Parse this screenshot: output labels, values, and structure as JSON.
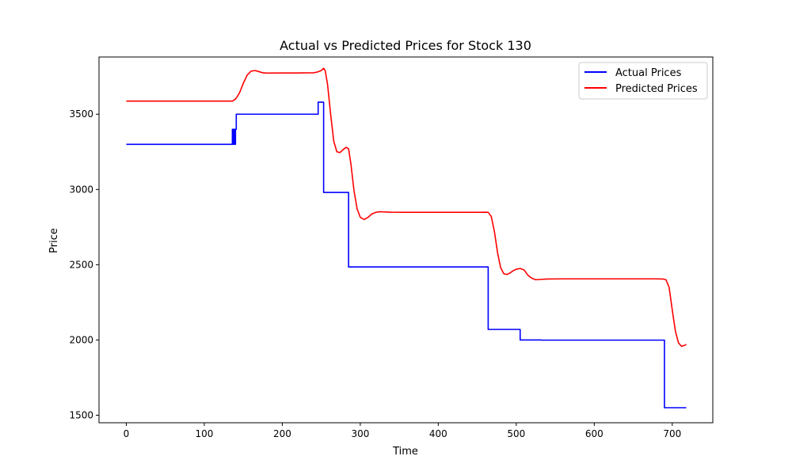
{
  "chart_data": {
    "type": "line",
    "title": "Actual vs Predicted Prices for Stock 130",
    "xlabel": "Time",
    "ylabel": "Price",
    "xlim": [
      -35,
      752
    ],
    "ylim": [
      1450,
      3880
    ],
    "xticks": [
      0,
      100,
      200,
      300,
      400,
      500,
      600,
      700
    ],
    "yticks": [
      1500,
      2000,
      2500,
      3000,
      3500
    ],
    "grid": false,
    "legend_position": "top-right",
    "series": [
      {
        "name": "Actual Prices",
        "color": "#0000ff",
        "x": [
          0,
          136,
          136,
          137,
          137,
          138,
          138,
          139,
          139,
          140,
          140,
          141,
          141,
          246,
          246,
          253,
          253,
          285,
          285,
          464,
          464,
          505,
          505,
          532,
          533,
          690,
          690,
          718
        ],
        "y": [
          3300,
          3300,
          3400,
          3400,
          3300,
          3300,
          3400,
          3400,
          3300,
          3300,
          3400,
          3400,
          3500,
          3500,
          3580,
          3580,
          2980,
          2980,
          2485,
          2485,
          2070,
          2070,
          2000,
          2000,
          1999,
          1999,
          1550,
          1550
        ]
      },
      {
        "name": "Predicted Prices",
        "color": "#ff0000",
        "x": [
          0,
          136,
          140,
          145,
          150,
          155,
          160,
          165,
          170,
          175,
          180,
          200,
          220,
          240,
          245,
          250,
          253,
          255,
          258,
          262,
          266,
          270,
          274,
          278,
          282,
          285,
          288,
          292,
          296,
          300,
          305,
          310,
          315,
          320,
          325,
          330,
          340,
          360,
          400,
          440,
          455,
          460,
          464,
          468,
          472,
          476,
          480,
          484,
          488,
          492,
          496,
          500,
          505,
          510,
          515,
          520,
          525,
          530,
          540,
          560,
          600,
          650,
          680,
          688,
          692,
          696,
          700,
          704,
          708,
          712,
          716,
          718
        ],
        "y": [
          3587,
          3587,
          3600,
          3640,
          3705,
          3760,
          3786,
          3790,
          3783,
          3775,
          3773,
          3774,
          3774,
          3775,
          3780,
          3790,
          3805,
          3790,
          3700,
          3500,
          3320,
          3250,
          3245,
          3265,
          3280,
          3270,
          3170,
          2990,
          2870,
          2815,
          2800,
          2815,
          2838,
          2848,
          2852,
          2851,
          2849,
          2848,
          2848,
          2848,
          2848,
          2849,
          2848,
          2820,
          2720,
          2580,
          2480,
          2440,
          2435,
          2445,
          2460,
          2470,
          2475,
          2465,
          2430,
          2410,
          2400,
          2402,
          2405,
          2406,
          2406,
          2406,
          2406,
          2405,
          2400,
          2350,
          2200,
          2060,
          1980,
          1958,
          1965,
          1970
        ]
      }
    ]
  }
}
